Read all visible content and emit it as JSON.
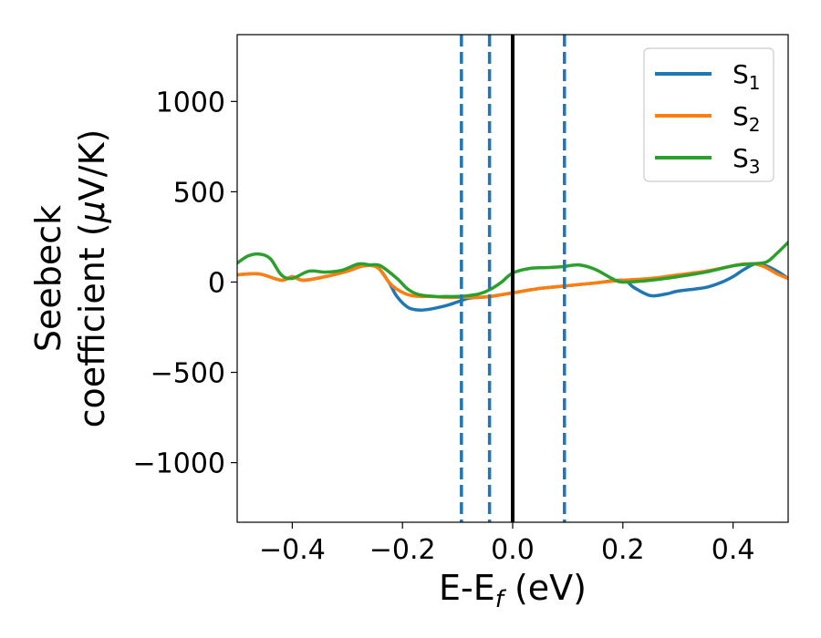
{
  "chart_data": {
    "type": "line",
    "title": "",
    "xlabel": "E-E",
    "xlabel_sub": "f",
    "xlabel_unit": " (eV)",
    "ylabel_line1": "Seebeck",
    "ylabel_line2": "coefficient  (",
    "ylabel_mu": "μ",
    "ylabel_unit": "V/K)",
    "xlim": [
      -0.5,
      0.5
    ],
    "ylim": [
      -1330,
      1370
    ],
    "xticks": [
      -0.4,
      -0.2,
      0.0,
      0.2,
      0.4
    ],
    "xtick_labels": [
      "−0.4",
      "−0.2",
      "0.0",
      "0.2",
      "0.4"
    ],
    "yticks": [
      -1000,
      -500,
      0,
      500,
      1000
    ],
    "ytick_labels": [
      "−1000",
      "−500",
      "0",
      "500",
      "1000"
    ],
    "grid": false,
    "legend_position": "top-right",
    "vertical_lines": [
      {
        "x": -0.093,
        "style": "dashed",
        "color": "#1f77b4"
      },
      {
        "x": -0.042,
        "style": "dashed",
        "color": "#1f77b4"
      },
      {
        "x": 0.0,
        "style": "solid",
        "color": "#000000"
      },
      {
        "x": 0.094,
        "style": "dashed",
        "color": "#1f77b4"
      }
    ],
    "series": [
      {
        "name": "S",
        "subscript": "1",
        "color": "#1f77b4",
        "x": [
          -0.5,
          -0.46,
          -0.42,
          -0.4,
          -0.38,
          -0.34,
          -0.3,
          -0.27,
          -0.245,
          -0.225,
          -0.21,
          -0.19,
          -0.17,
          -0.15,
          -0.12,
          -0.1,
          -0.08,
          -0.06,
          -0.04,
          -0.02,
          0.0,
          0.05,
          0.1,
          0.15,
          0.2,
          0.22,
          0.25,
          0.28,
          0.3,
          0.35,
          0.38,
          0.4,
          0.42,
          0.44,
          0.46,
          0.48,
          0.5
        ],
        "y": [
          40,
          45,
          10,
          30,
          10,
          30,
          60,
          90,
          80,
          0,
          -80,
          -140,
          -155,
          -150,
          -130,
          -110,
          -90,
          -85,
          -80,
          -70,
          -60,
          -35,
          -20,
          -5,
          10,
          -30,
          -75,
          -65,
          -50,
          -30,
          0,
          30,
          70,
          100,
          90,
          60,
          20
        ]
      },
      {
        "name": "S",
        "subscript": "2",
        "color": "#ff7f0e",
        "x": [
          -0.5,
          -0.46,
          -0.42,
          -0.4,
          -0.38,
          -0.34,
          -0.3,
          -0.27,
          -0.245,
          -0.225,
          -0.21,
          -0.19,
          -0.17,
          -0.15,
          -0.12,
          -0.1,
          -0.08,
          -0.06,
          -0.04,
          -0.02,
          0.0,
          0.05,
          0.1,
          0.15,
          0.2,
          0.25,
          0.3,
          0.35,
          0.4,
          0.42,
          0.44,
          0.46,
          0.48,
          0.5
        ],
        "y": [
          40,
          45,
          10,
          30,
          10,
          30,
          60,
          90,
          80,
          0,
          -40,
          -70,
          -80,
          -80,
          -85,
          -85,
          -85,
          -85,
          -80,
          -70,
          -60,
          -35,
          -20,
          -5,
          10,
          20,
          40,
          60,
          90,
          100,
          100,
          80,
          45,
          20
        ]
      },
      {
        "name": "S",
        "subscript": "3",
        "color": "#2ca02c",
        "x": [
          -0.5,
          -0.48,
          -0.46,
          -0.44,
          -0.42,
          -0.4,
          -0.37,
          -0.34,
          -0.31,
          -0.28,
          -0.26,
          -0.24,
          -0.21,
          -0.19,
          -0.17,
          -0.14,
          -0.12,
          -0.1,
          -0.08,
          -0.06,
          -0.04,
          -0.02,
          0.0,
          0.03,
          0.06,
          0.09,
          0.12,
          0.15,
          0.18,
          0.2,
          0.25,
          0.3,
          0.35,
          0.4,
          0.43,
          0.46,
          0.48,
          0.5
        ],
        "y": [
          105,
          145,
          155,
          130,
          40,
          20,
          60,
          55,
          65,
          100,
          95,
          90,
          20,
          -40,
          -70,
          -80,
          -80,
          -80,
          -75,
          -65,
          -40,
          0,
          50,
          75,
          80,
          85,
          95,
          70,
          20,
          0,
          10,
          30,
          55,
          90,
          100,
          110,
          160,
          220
        ]
      }
    ]
  }
}
